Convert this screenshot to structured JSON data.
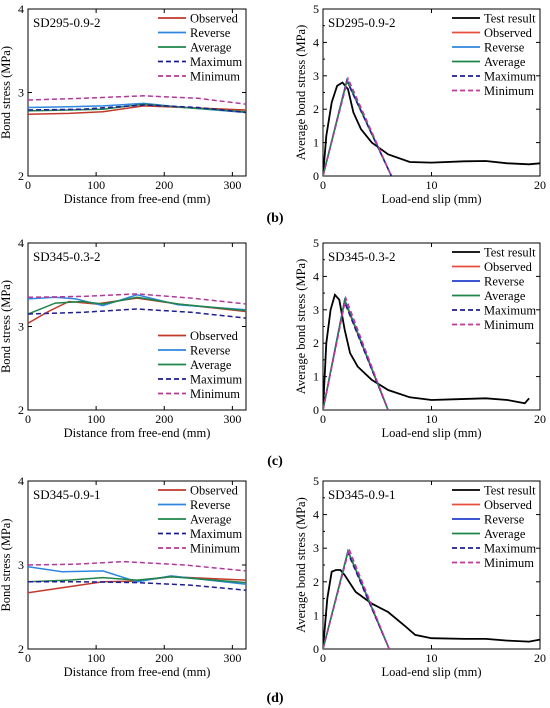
{
  "figure": {
    "panel_labels": [
      "(b)",
      "(c)",
      "(d)"
    ]
  },
  "chart_data": [
    {
      "type": "line",
      "panel": "b",
      "title": "SD295-0.9-2",
      "xlabel": "Distance from free-end (mm)",
      "ylabel": "Bond stress (MPa)",
      "xlim": [
        0,
        320
      ],
      "ylim": [
        2,
        4
      ],
      "xticks": [
        "0",
        "100",
        "200",
        "300"
      ],
      "yticks": [
        "2",
        "3",
        "4"
      ],
      "legend_position": "top-right",
      "series": [
        {
          "name": "Observed",
          "color": "#c0392b",
          "dash": "",
          "x": [
            0,
            60,
            110,
            170,
            230,
            320
          ],
          "y": [
            2.74,
            2.75,
            2.77,
            2.84,
            2.82,
            2.79
          ]
        },
        {
          "name": "Reverse",
          "color": "#2e86de",
          "dash": "",
          "x": [
            0,
            60,
            110,
            170,
            230,
            320
          ],
          "y": [
            2.82,
            2.83,
            2.84,
            2.87,
            2.82,
            2.76
          ]
        },
        {
          "name": "Average",
          "color": "#1e8449",
          "dash": "",
          "x": [
            0,
            60,
            110,
            170,
            230,
            320
          ],
          "y": [
            2.78,
            2.79,
            2.8,
            2.86,
            2.82,
            2.77
          ]
        },
        {
          "name": "Maximum",
          "color": "#1f1f8f",
          "dash": "5,3",
          "x": [
            0,
            80,
            170,
            250,
            320
          ],
          "y": [
            2.79,
            2.8,
            2.85,
            2.82,
            2.76
          ]
        },
        {
          "name": "Minimum",
          "color": "#b03a9a",
          "dash": "5,3",
          "x": [
            0,
            80,
            170,
            250,
            320
          ],
          "y": [
            2.91,
            2.93,
            2.96,
            2.93,
            2.86
          ]
        }
      ]
    },
    {
      "type": "line",
      "panel": "b",
      "title": "SD295-0.9-2",
      "xlabel": "Load-end slip (mm)",
      "ylabel": "Average bond stress (MPa)",
      "xlim": [
        0,
        20
      ],
      "ylim": [
        0,
        5
      ],
      "xticks": [
        "0",
        "10",
        "20"
      ],
      "yticks": [
        "0",
        "1",
        "2",
        "3",
        "4",
        "5"
      ],
      "legend_position": "top-right",
      "series": [
        {
          "name": "Test result",
          "color": "#000000",
          "dash": "",
          "x": [
            0,
            0.3,
            0.8,
            1.3,
            1.8,
            2.3,
            2.8,
            3.5,
            4.5,
            6,
            8,
            10,
            13,
            15,
            17,
            19,
            20
          ],
          "y": [
            0,
            1.2,
            2.2,
            2.7,
            2.8,
            2.6,
            1.9,
            1.4,
            1.0,
            0.65,
            0.42,
            0.4,
            0.44,
            0.45,
            0.38,
            0.35,
            0.38
          ]
        },
        {
          "name": "Observed",
          "color": "#e74c3c",
          "dash": "",
          "x": [
            0,
            2.2,
            6.3
          ],
          "y": [
            0,
            2.85,
            0
          ]
        },
        {
          "name": "Reverse",
          "color": "#2e86de",
          "dash": "",
          "x": [
            0,
            2.2,
            6.3
          ],
          "y": [
            0,
            2.88,
            0
          ]
        },
        {
          "name": "Average",
          "color": "#1e8449",
          "dash": "",
          "x": [
            0,
            2.2,
            6.3
          ],
          "y": [
            0,
            2.86,
            0
          ]
        },
        {
          "name": "Maximum",
          "color": "#1f1f8f",
          "dash": "5,3",
          "x": [
            0,
            2.2,
            6.3
          ],
          "y": [
            0,
            2.84,
            0
          ]
        },
        {
          "name": "Minimum",
          "color": "#c0399b",
          "dash": "5,3",
          "x": [
            0,
            2.3,
            6.3
          ],
          "y": [
            0,
            2.92,
            0
          ]
        }
      ]
    },
    {
      "type": "line",
      "panel": "c",
      "title": "SD345-0.3-2",
      "xlabel": "Distance from free-end (mm)",
      "ylabel": "Bond stress (MPa)",
      "xlim": [
        0,
        320
      ],
      "ylim": [
        2,
        4
      ],
      "xticks": [
        "0",
        "100",
        "200",
        "300"
      ],
      "yticks": [
        "2",
        "3",
        "4"
      ],
      "legend_position": "bottom-right",
      "series": [
        {
          "name": "Observed",
          "color": "#c0392b",
          "dash": "",
          "x": [
            0,
            30,
            60,
            100,
            160,
            220,
            320
          ],
          "y": [
            3.04,
            3.18,
            3.3,
            3.27,
            3.34,
            3.27,
            3.18
          ]
        },
        {
          "name": "Reverse",
          "color": "#2e86de",
          "dash": "",
          "x": [
            0,
            40,
            70,
            110,
            160,
            220,
            320
          ],
          "y": [
            3.33,
            3.35,
            3.33,
            3.25,
            3.38,
            3.26,
            3.2
          ]
        },
        {
          "name": "Average",
          "color": "#1e8449",
          "dash": "",
          "x": [
            0,
            40,
            80,
            110,
            160,
            220,
            320
          ],
          "y": [
            3.15,
            3.28,
            3.3,
            3.27,
            3.35,
            3.27,
            3.19
          ]
        },
        {
          "name": "Maximum",
          "color": "#1f1f8f",
          "dash": "5,3",
          "x": [
            0,
            80,
            160,
            240,
            320
          ],
          "y": [
            3.15,
            3.17,
            3.21,
            3.17,
            3.1
          ]
        },
        {
          "name": "Minimum",
          "color": "#b03a9a",
          "dash": "5,3",
          "x": [
            0,
            80,
            160,
            240,
            320
          ],
          "y": [
            3.35,
            3.36,
            3.39,
            3.34,
            3.27
          ]
        }
      ]
    },
    {
      "type": "line",
      "panel": "c",
      "title": "SD345-0.3-2",
      "xlabel": "Load-end slip (mm)",
      "ylabel": "Average bond stress (MPa)",
      "xlim": [
        0,
        20
      ],
      "ylim": [
        0,
        5
      ],
      "xticks": [
        "0",
        "10",
        "20"
      ],
      "yticks": [
        "0",
        "1",
        "2",
        "3",
        "4",
        "5"
      ],
      "legend_position": "top-right",
      "series": [
        {
          "name": "Test result",
          "color": "#000000",
          "dash": "",
          "x": [
            0,
            0.3,
            0.7,
            1.1,
            1.5,
            2.0,
            2.5,
            3.2,
            4.5,
            6,
            8,
            10,
            12,
            15,
            17,
            18.6,
            19
          ],
          "y": [
            0,
            2.0,
            3.0,
            3.45,
            3.3,
            2.4,
            1.7,
            1.3,
            0.9,
            0.6,
            0.38,
            0.3,
            0.32,
            0.35,
            0.3,
            0.2,
            0.35
          ]
        },
        {
          "name": "Observed",
          "color": "#e74c3c",
          "dash": "",
          "x": [
            0,
            2.0,
            6.0
          ],
          "y": [
            0,
            3.25,
            0
          ]
        },
        {
          "name": "Reverse",
          "color": "#1f3fcf",
          "dash": "",
          "x": [
            0,
            2.0,
            6.0
          ],
          "y": [
            0,
            3.3,
            0
          ]
        },
        {
          "name": "Average",
          "color": "#1e8449",
          "dash": "",
          "x": [
            0,
            2.0,
            6.0
          ],
          "y": [
            0,
            3.28,
            0
          ]
        },
        {
          "name": "Maximum",
          "color": "#1f1f8f",
          "dash": "5,3",
          "x": [
            0,
            2.0,
            6.0
          ],
          "y": [
            0,
            3.22,
            0
          ]
        },
        {
          "name": "Minimum",
          "color": "#c0399b",
          "dash": "5,3",
          "x": [
            0,
            2.1,
            6.0
          ],
          "y": [
            0,
            3.35,
            0
          ]
        }
      ]
    },
    {
      "type": "line",
      "panel": "d",
      "title": "SD345-0.9-1",
      "xlabel": "Distance from free-end (mm)",
      "ylabel": "Bond stress (MPa)",
      "xlim": [
        0,
        320
      ],
      "ylim": [
        2,
        4
      ],
      "xticks": [
        "0",
        "100",
        "200",
        "300"
      ],
      "yticks": [
        "2",
        "3",
        "4"
      ],
      "legend_position": "top-right",
      "series": [
        {
          "name": "Observed",
          "color": "#c0392b",
          "dash": "",
          "x": [
            0,
            60,
            110,
            160,
            210,
            320
          ],
          "y": [
            2.67,
            2.74,
            2.8,
            2.81,
            2.86,
            2.82
          ]
        },
        {
          "name": "Reverse",
          "color": "#2e86de",
          "dash": "",
          "x": [
            0,
            50,
            110,
            160,
            210,
            320
          ],
          "y": [
            2.98,
            2.92,
            2.93,
            2.8,
            2.87,
            2.77
          ]
        },
        {
          "name": "Average",
          "color": "#1e8449",
          "dash": "",
          "x": [
            0,
            60,
            110,
            160,
            210,
            320
          ],
          "y": [
            2.8,
            2.82,
            2.85,
            2.82,
            2.86,
            2.79
          ]
        },
        {
          "name": "Maximum",
          "color": "#1f1f8f",
          "dash": "5,3",
          "x": [
            0,
            80,
            160,
            240,
            320
          ],
          "y": [
            2.8,
            2.8,
            2.79,
            2.76,
            2.7
          ]
        },
        {
          "name": "Minimum",
          "color": "#b03a9a",
          "dash": "5,3",
          "x": [
            0,
            70,
            140,
            230,
            320
          ],
          "y": [
            3.0,
            3.01,
            3.04,
            3.0,
            2.93
          ]
        }
      ]
    },
    {
      "type": "line",
      "panel": "d",
      "title": "SD345-0.9-1",
      "xlabel": "Load-end slip (mm)",
      "ylabel": "Average bond stress (MPa)",
      "xlim": [
        0,
        20
      ],
      "ylim": [
        0,
        5
      ],
      "xticks": [
        "0",
        "10",
        "20"
      ],
      "yticks": [
        "0",
        "1",
        "2",
        "3",
        "4",
        "5"
      ],
      "legend_position": "top-right",
      "series": [
        {
          "name": "Test result",
          "color": "#000000",
          "dash": "",
          "x": [
            0,
            0.4,
            0.8,
            1.2,
            1.6,
            2.0,
            3.0,
            4.5,
            6,
            7.5,
            8.5,
            10,
            13,
            15,
            17,
            19,
            20
          ],
          "y": [
            0,
            1.5,
            2.3,
            2.35,
            2.35,
            2.2,
            1.7,
            1.35,
            1.1,
            0.7,
            0.42,
            0.32,
            0.3,
            0.3,
            0.25,
            0.22,
            0.28
          ]
        },
        {
          "name": "Observed",
          "color": "#e74c3c",
          "dash": "",
          "x": [
            0,
            2.3,
            6.1
          ],
          "y": [
            0,
            2.9,
            0
          ]
        },
        {
          "name": "Reverse",
          "color": "#1f3fcf",
          "dash": "",
          "x": [
            0,
            2.3,
            6.1
          ],
          "y": [
            0,
            2.92,
            0
          ]
        },
        {
          "name": "Average",
          "color": "#1e8449",
          "dash": "",
          "x": [
            0,
            2.3,
            6.1
          ],
          "y": [
            0,
            2.91,
            0
          ]
        },
        {
          "name": "Maximum",
          "color": "#1f1f8f",
          "dash": "5,3",
          "x": [
            0,
            2.3,
            6.1
          ],
          "y": [
            0,
            2.85,
            0
          ]
        },
        {
          "name": "Minimum",
          "color": "#c0399b",
          "dash": "5,3",
          "x": [
            0,
            2.4,
            6.1
          ],
          "y": [
            0,
            2.98,
            0
          ]
        }
      ]
    }
  ]
}
